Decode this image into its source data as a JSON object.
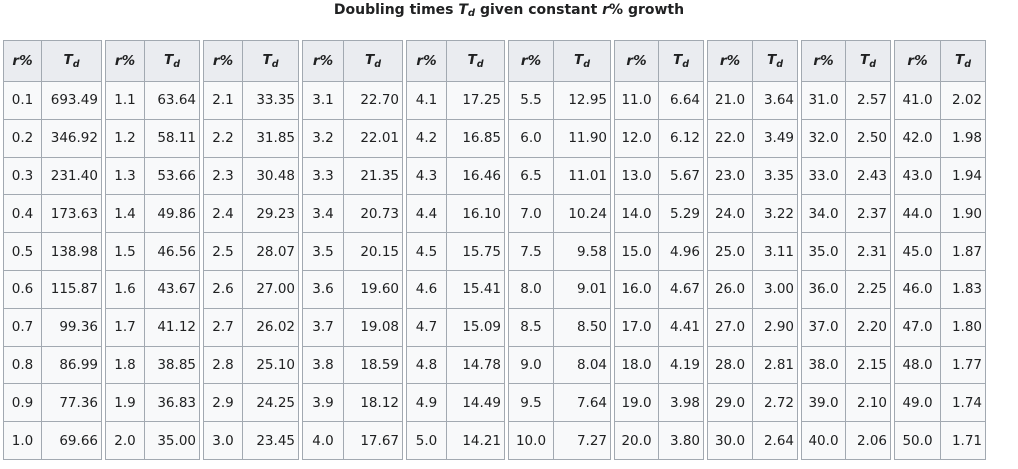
{
  "caption": {
    "before": "Doubling times ",
    "symbol": "T",
    "subscript": "d",
    "middle": " given constant ",
    "rate_symbol": "r",
    "after": "% growth"
  },
  "column_headers": {
    "rate": "r%",
    "time_symbol": "T",
    "time_subscript": "d"
  },
  "tables": [
    {
      "rows": [
        [
          "0.1",
          "693.49"
        ],
        [
          "0.2",
          "346.92"
        ],
        [
          "0.3",
          "231.40"
        ],
        [
          "0.4",
          "173.63"
        ],
        [
          "0.5",
          "138.98"
        ],
        [
          "0.6",
          "115.87"
        ],
        [
          "0.7",
          "99.36"
        ],
        [
          "0.8",
          "86.99"
        ],
        [
          "0.9",
          "77.36"
        ],
        [
          "1.0",
          "69.66"
        ]
      ]
    },
    {
      "rows": [
        [
          "1.1",
          "63.64"
        ],
        [
          "1.2",
          "58.11"
        ],
        [
          "1.3",
          "53.66"
        ],
        [
          "1.4",
          "49.86"
        ],
        [
          "1.5",
          "46.56"
        ],
        [
          "1.6",
          "43.67"
        ],
        [
          "1.7",
          "41.12"
        ],
        [
          "1.8",
          "38.85"
        ],
        [
          "1.9",
          "36.83"
        ],
        [
          "2.0",
          "35.00"
        ]
      ]
    },
    {
      "rows": [
        [
          "2.1",
          "33.35"
        ],
        [
          "2.2",
          "31.85"
        ],
        [
          "2.3",
          "30.48"
        ],
        [
          "2.4",
          "29.23"
        ],
        [
          "2.5",
          "28.07"
        ],
        [
          "2.6",
          "27.00"
        ],
        [
          "2.7",
          "26.02"
        ],
        [
          "2.8",
          "25.10"
        ],
        [
          "2.9",
          "24.25"
        ],
        [
          "3.0",
          "23.45"
        ]
      ]
    },
    {
      "rows": [
        [
          "3.1",
          "22.70"
        ],
        [
          "3.2",
          "22.01"
        ],
        [
          "3.3",
          "21.35"
        ],
        [
          "3.4",
          "20.73"
        ],
        [
          "3.5",
          "20.15"
        ],
        [
          "3.6",
          "19.60"
        ],
        [
          "3.7",
          "19.08"
        ],
        [
          "3.8",
          "18.59"
        ],
        [
          "3.9",
          "18.12"
        ],
        [
          "4.0",
          "17.67"
        ]
      ]
    },
    {
      "rows": [
        [
          "4.1",
          "17.25"
        ],
        [
          "4.2",
          "16.85"
        ],
        [
          "4.3",
          "16.46"
        ],
        [
          "4.4",
          "16.10"
        ],
        [
          "4.5",
          "15.75"
        ],
        [
          "4.6",
          "15.41"
        ],
        [
          "4.7",
          "15.09"
        ],
        [
          "4.8",
          "14.78"
        ],
        [
          "4.9",
          "14.49"
        ],
        [
          "5.0",
          "14.21"
        ]
      ]
    },
    {
      "rows": [
        [
          "5.5",
          "12.95"
        ],
        [
          "6.0",
          "11.90"
        ],
        [
          "6.5",
          "11.01"
        ],
        [
          "7.0",
          "10.24"
        ],
        [
          "7.5",
          "9.58"
        ],
        [
          "8.0",
          "9.01"
        ],
        [
          "8.5",
          "8.50"
        ],
        [
          "9.0",
          "8.04"
        ],
        [
          "9.5",
          "7.64"
        ],
        [
          "10.0",
          "7.27"
        ]
      ]
    },
    {
      "rows": [
        [
          "11.0",
          "6.64"
        ],
        [
          "12.0",
          "6.12"
        ],
        [
          "13.0",
          "5.67"
        ],
        [
          "14.0",
          "5.29"
        ],
        [
          "15.0",
          "4.96"
        ],
        [
          "16.0",
          "4.67"
        ],
        [
          "17.0",
          "4.41"
        ],
        [
          "18.0",
          "4.19"
        ],
        [
          "19.0",
          "3.98"
        ],
        [
          "20.0",
          "3.80"
        ]
      ]
    },
    {
      "rows": [
        [
          "21.0",
          "3.64"
        ],
        [
          "22.0",
          "3.49"
        ],
        [
          "23.0",
          "3.35"
        ],
        [
          "24.0",
          "3.22"
        ],
        [
          "25.0",
          "3.11"
        ],
        [
          "26.0",
          "3.00"
        ],
        [
          "27.0",
          "2.90"
        ],
        [
          "28.0",
          "2.81"
        ],
        [
          "29.0",
          "2.72"
        ],
        [
          "30.0",
          "2.64"
        ]
      ]
    },
    {
      "rows": [
        [
          "31.0",
          "2.57"
        ],
        [
          "32.0",
          "2.50"
        ],
        [
          "33.0",
          "2.43"
        ],
        [
          "34.0",
          "2.37"
        ],
        [
          "35.0",
          "2.31"
        ],
        [
          "36.0",
          "2.25"
        ],
        [
          "37.0",
          "2.20"
        ],
        [
          "38.0",
          "2.15"
        ],
        [
          "39.0",
          "2.10"
        ],
        [
          "40.0",
          "2.06"
        ]
      ]
    },
    {
      "rows": [
        [
          "41.0",
          "2.02"
        ],
        [
          "42.0",
          "1.98"
        ],
        [
          "43.0",
          "1.94"
        ],
        [
          "44.0",
          "1.90"
        ],
        [
          "45.0",
          "1.87"
        ],
        [
          "46.0",
          "1.83"
        ],
        [
          "47.0",
          "1.80"
        ],
        [
          "48.0",
          "1.77"
        ],
        [
          "49.0",
          "1.74"
        ],
        [
          "50.0",
          "1.71"
        ]
      ]
    }
  ]
}
